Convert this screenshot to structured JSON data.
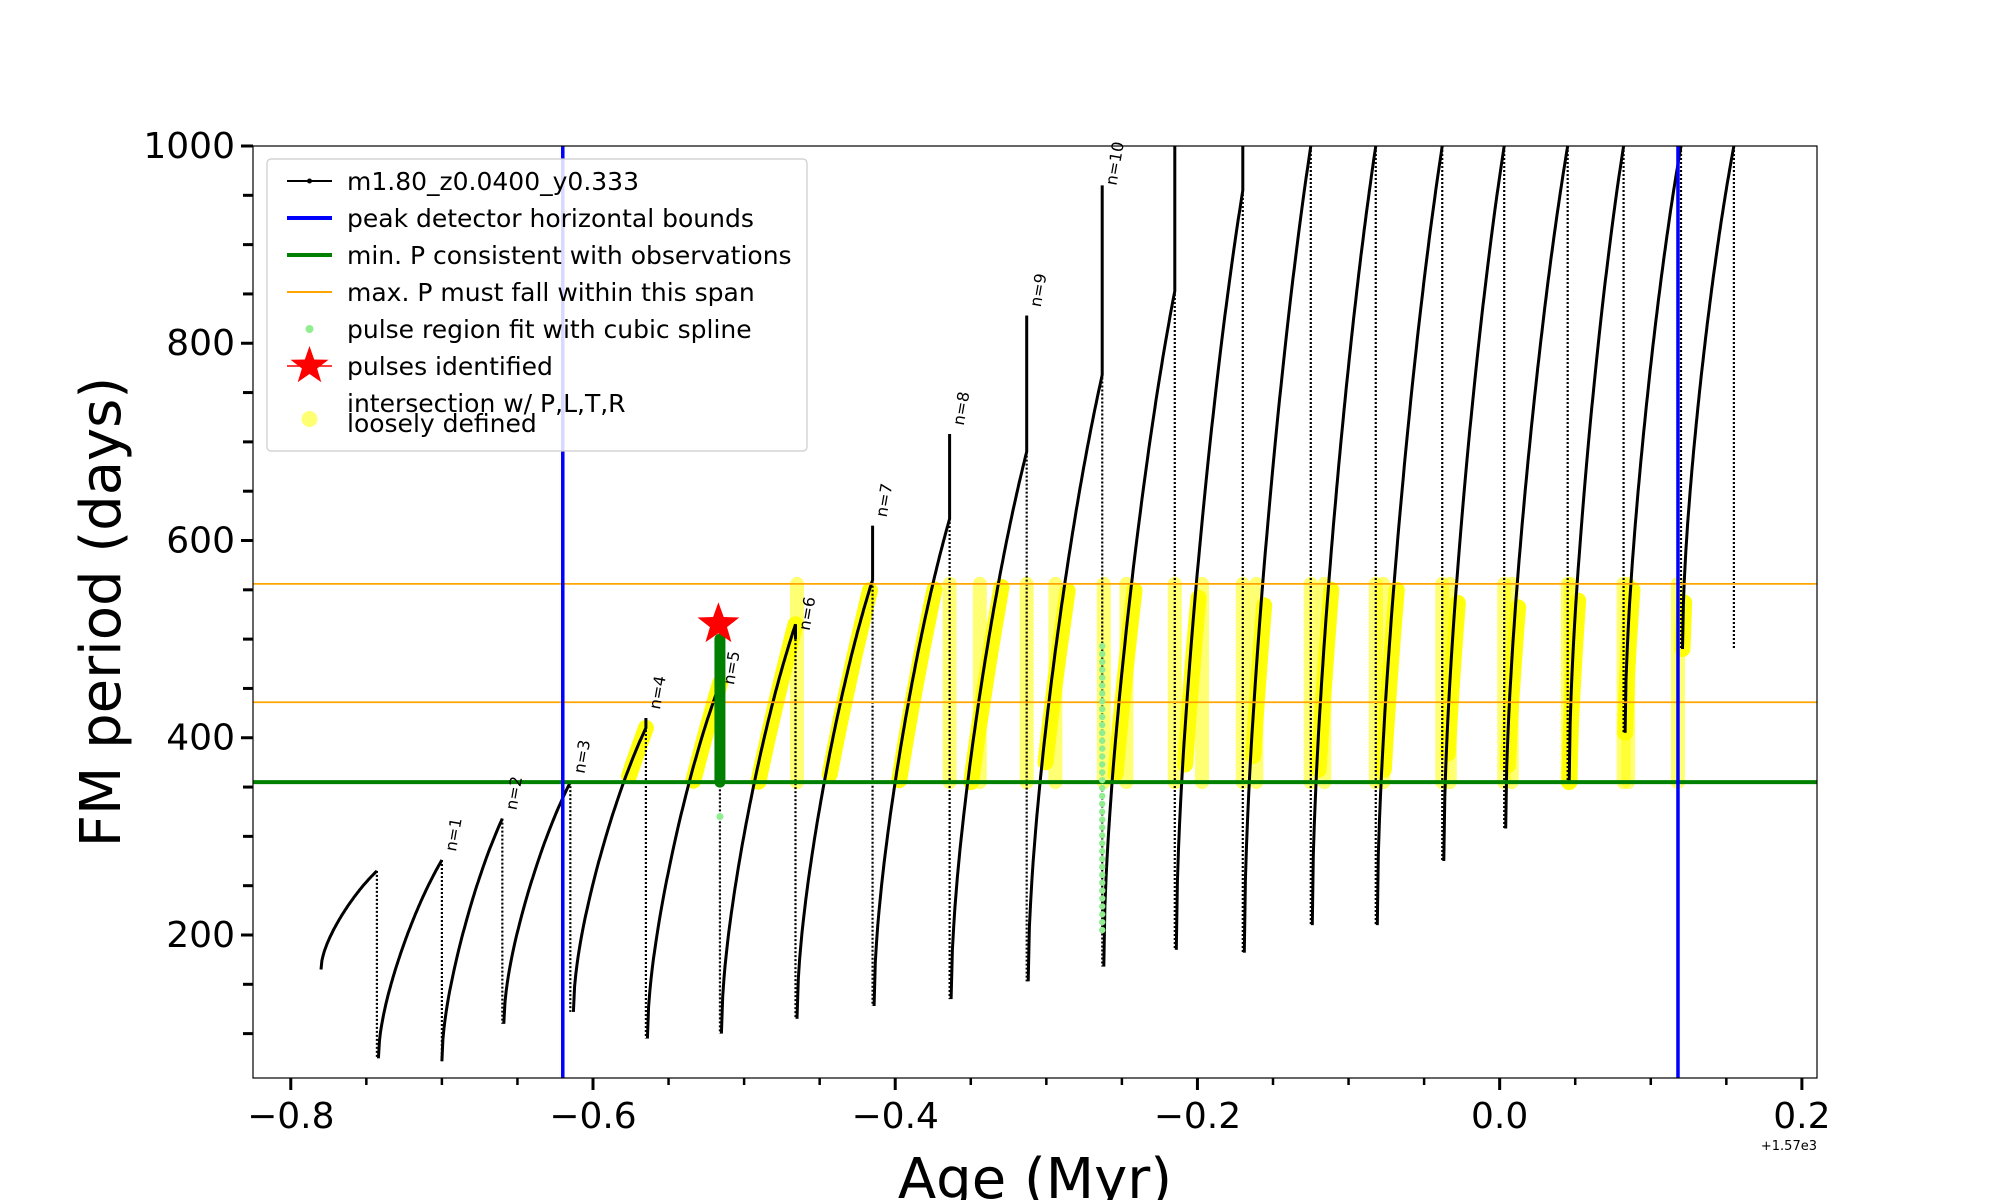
{
  "chart_data": {
    "type": "line",
    "xlabel": "Age (Myr)",
    "ylabel": "FM period (days)",
    "x_offset_text": "+1.57e3",
    "xlim": [
      -0.825,
      0.21
    ],
    "ylim": [
      55,
      1000
    ],
    "x_ticks": [
      -0.8,
      -0.6,
      -0.4,
      -0.2,
      0.0,
      0.2
    ],
    "x_tick_labels": [
      "−0.8",
      "−0.6",
      "−0.4",
      "−0.2",
      "0.0",
      "0.2"
    ],
    "y_ticks": [
      200,
      400,
      600,
      800,
      1000
    ],
    "y_tick_labels": [
      "200",
      "400",
      "600",
      "800",
      "1000"
    ],
    "colors": {
      "track": "#000000",
      "bounds": "#0000ff",
      "min_p": "#008000",
      "max_span": "#ffa500",
      "spline": "#90ee90",
      "pulse_fit": "#008000",
      "pulse_star": "#ff0000",
      "loose": "#ffff00"
    },
    "legend": [
      {
        "label": "m1.80_z0.0400_y0.333",
        "style": "track"
      },
      {
        "label": "peak detector horizontal bounds",
        "style": "bounds"
      },
      {
        "label": "min. P consistent with observations",
        "style": "min_p"
      },
      {
        "label": "max. P must fall within this span",
        "style": "max_span"
      },
      {
        "label": "pulse region fit with cubic spline",
        "style": "spline"
      },
      {
        "label": "pulses identified",
        "style": "star"
      },
      {
        "label": "intersection w/ P,L,T,R",
        "style": "loose"
      },
      {
        "label": "loosely defined",
        "style": "none"
      }
    ],
    "peak_detector_bounds_x": [
      -0.62,
      0.118
    ],
    "min_p": 355,
    "max_p_span": [
      436,
      556
    ],
    "pulses": [
      {
        "start": -0.78,
        "end": -0.743,
        "low": 165,
        "peak": 265,
        "spike": 265,
        "label": ""
      },
      {
        "start": -0.742,
        "end": -0.7,
        "low": 75,
        "peak": 276,
        "spike": 276,
        "label": "n=1"
      },
      {
        "start": -0.7,
        "end": -0.66,
        "low": 72,
        "peak": 318,
        "spike": 318,
        "label": "n=2"
      },
      {
        "start": -0.659,
        "end": -0.615,
        "low": 110,
        "peak": 355,
        "spike": 355,
        "label": "n=3"
      },
      {
        "start": -0.613,
        "end": -0.565,
        "low": 122,
        "peak": 410,
        "spike": 420,
        "label": "n=4"
      },
      {
        "start": -0.564,
        "end": -0.516,
        "low": 95,
        "peak": 455,
        "spike": 445,
        "label": "n=5"
      },
      {
        "start": -0.515,
        "end": -0.466,
        "low": 100,
        "peak": 515,
        "spike": 500,
        "label": "n=6"
      },
      {
        "start": -0.465,
        "end": -0.415,
        "low": 115,
        "peak": 560,
        "spike": 615,
        "label": "n=7"
      },
      {
        "start": -0.414,
        "end": -0.364,
        "low": 128,
        "peak": 622,
        "spike": 708,
        "label": "n=8"
      },
      {
        "start": -0.363,
        "end": -0.313,
        "low": 135,
        "peak": 690,
        "spike": 828,
        "label": "n=9"
      },
      {
        "start": -0.312,
        "end": -0.263,
        "low": 153,
        "peak": 768,
        "spike": 960,
        "label": "n=10"
      },
      {
        "start": -0.262,
        "end": -0.215,
        "low": 168,
        "peak": 853,
        "spike": 1000,
        "label": ""
      },
      {
        "start": -0.214,
        "end": -0.17,
        "low": 185,
        "peak": 955,
        "spike": 1000,
        "label": ""
      },
      {
        "start": -0.169,
        "end": -0.125,
        "low": 182,
        "peak": 1000,
        "spike": 1000,
        "label": ""
      },
      {
        "start": -0.124,
        "end": -0.082,
        "low": 210,
        "peak": 1000,
        "spike": 1000,
        "label": ""
      },
      {
        "start": -0.081,
        "end": -0.038,
        "low": 210,
        "peak": 1000,
        "spike": 1000,
        "label": ""
      },
      {
        "start": -0.037,
        "end": 0.003,
        "low": 275,
        "peak": 1000,
        "spike": 1000,
        "label": ""
      },
      {
        "start": 0.004,
        "end": 0.045,
        "low": 308,
        "peak": 1000,
        "spike": 1000,
        "label": ""
      },
      {
        "start": 0.046,
        "end": 0.082,
        "low": 355,
        "peak": 1000,
        "spike": 1000,
        "label": ""
      },
      {
        "start": 0.083,
        "end": 0.12,
        "low": 405,
        "peak": 1000,
        "spike": 1000,
        "label": ""
      },
      {
        "start": 0.121,
        "end": 0.155,
        "low": 490,
        "peak": 1000,
        "spike": 1000,
        "label": ""
      }
    ],
    "pulse_fit": {
      "x": -0.516,
      "low": 355,
      "high": 500
    },
    "pulse_identified": {
      "x": -0.517,
      "y": 515
    },
    "spline_region": {
      "x": -0.263,
      "low": 205,
      "high": 500,
      "extra_x": -0.516,
      "extra_y": 320
    },
    "loose_vertical_x": [
      -0.465,
      -0.364,
      -0.344,
      -0.313,
      -0.294,
      -0.262,
      -0.247,
      -0.215,
      -0.197,
      -0.17,
      -0.161,
      -0.125,
      -0.116,
      -0.082,
      -0.077,
      -0.038,
      -0.033,
      0.003,
      0.008,
      0.045,
      0.047,
      0.082,
      0.085,
      0.118
    ]
  }
}
